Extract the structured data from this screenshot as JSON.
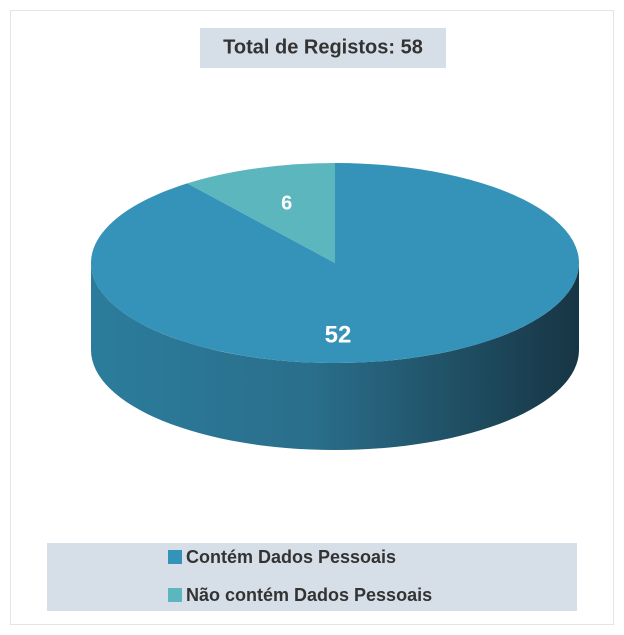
{
  "chart_data": {
    "type": "pie",
    "title": "Total de Registos: 58",
    "categories": [
      "Contém Dados Pessoais",
      "Não contém Dados Pessoais"
    ],
    "values": [
      52,
      6
    ],
    "colors": [
      "#3592b8",
      "#5bb6bd"
    ],
    "legend": "bottom"
  }
}
